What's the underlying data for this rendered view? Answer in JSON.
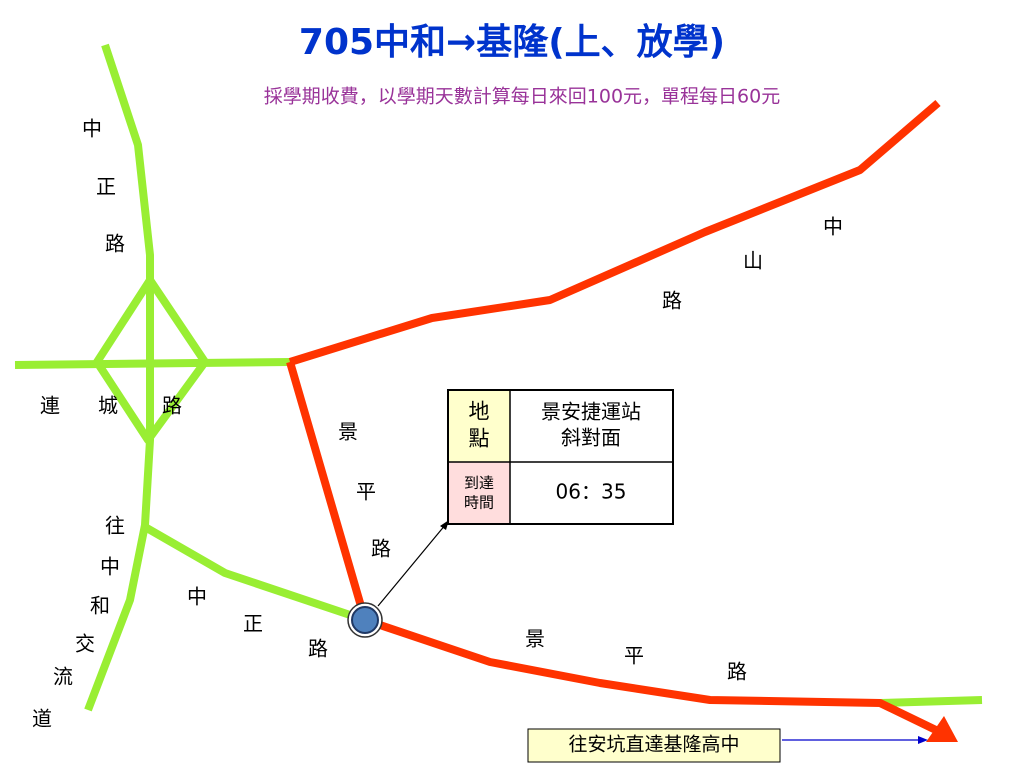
{
  "title": "705中和→基隆(上、放學)",
  "subtitle": "採學期收費，以學期天數計算每日來回100元，單程每日60元",
  "road_labels": [
    [
      "中",
      "正",
      "路"
    ],
    [
      "連",
      "城",
      "路"
    ],
    [
      "往",
      "中",
      "和",
      "交",
      "流",
      "道"
    ],
    [
      "中",
      "正",
      "路"
    ],
    [
      "景",
      "平",
      "路"
    ],
    [
      "中",
      "山",
      "路"
    ],
    [
      "景",
      "平",
      "路"
    ]
  ],
  "table": {
    "rows": [
      [
        [
          "地",
          "點"
        ],
        [
          "景安捷運站",
          "斜對面"
        ]
      ],
      [
        [
          "到達",
          "時間"
        ],
        [
          "06：35"
        ]
      ]
    ]
  },
  "destination": "往安坑直達基隆高中"
}
